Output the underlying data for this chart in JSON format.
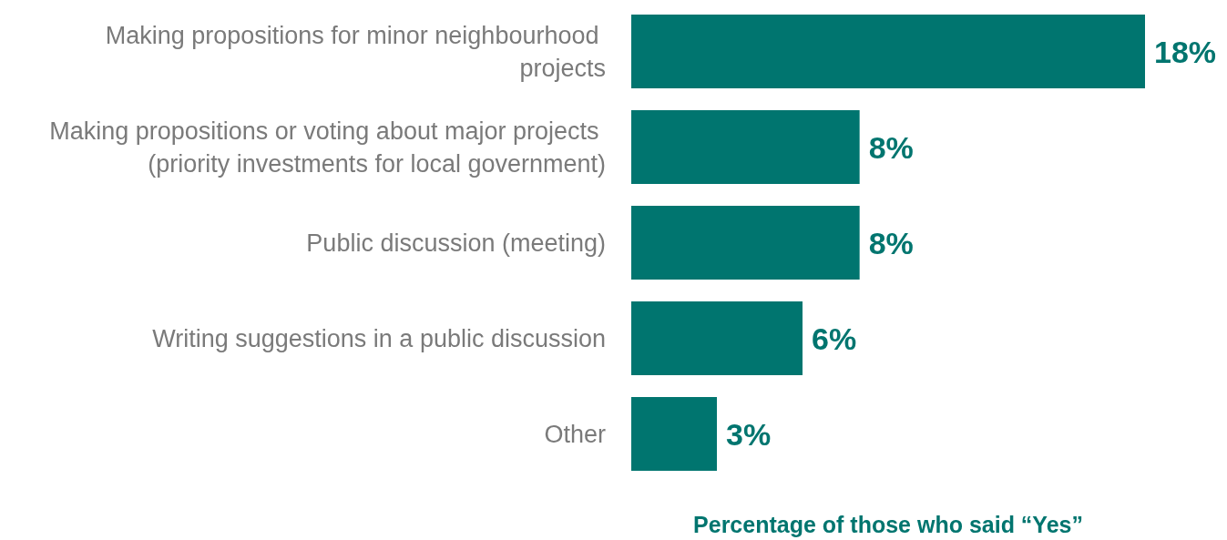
{
  "chart_data": {
    "type": "bar",
    "orientation": "horizontal",
    "xlabel": "Percentage of those who said “Yes”",
    "categories": [
      "Making propositions for minor neighbourhood projects",
      "Making propositions or voting about major projects (priority investments for local government)",
      "Public discussion (meeting)",
      "Writing suggestions in a public discussion",
      "Other"
    ],
    "values": [
      18,
      8,
      8,
      6,
      3
    ],
    "value_labels": [
      "18%",
      "8%",
      "8%",
      "6%",
      "3%"
    ],
    "color": "#00756f",
    "tick_labels": "y",
    "grid": false
  }
}
